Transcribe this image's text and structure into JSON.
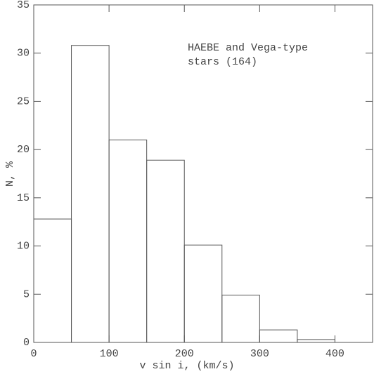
{
  "chart_data": {
    "type": "histogram",
    "bins": [
      0,
      50,
      100,
      150,
      200,
      250,
      300,
      350,
      400
    ],
    "values": [
      12.8,
      30.8,
      21.0,
      18.9,
      10.1,
      4.9,
      1.3,
      0.3
    ],
    "xlim": [
      0,
      450
    ],
    "ylim": [
      0,
      35
    ],
    "xticks": [
      0,
      100,
      200,
      300,
      400
    ],
    "yticks": [
      0,
      5,
      10,
      15,
      20,
      25,
      30,
      35
    ],
    "xlabel": "v sin i, (km/s)",
    "ylabel": "N, %",
    "annotation": [
      "HAEBE and Vega-type",
      "stars (164)"
    ],
    "color": "#555555"
  }
}
